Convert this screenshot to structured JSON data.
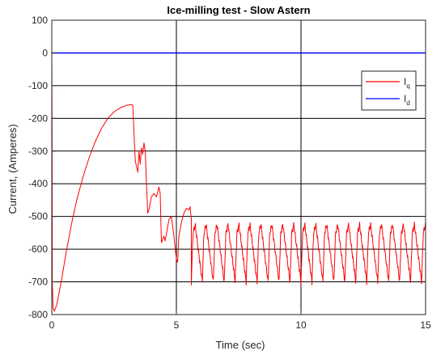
{
  "chart_data": {
    "type": "line",
    "title": "Ice-milling test - Slow Astern",
    "xlabel": "Time (sec)",
    "ylabel": "Current, (Amperes)",
    "xlim": [
      0,
      15
    ],
    "ylim": [
      -800,
      100
    ],
    "xticks": [
      0,
      5,
      10,
      15
    ],
    "yticks": [
      100,
      0,
      -100,
      -200,
      -300,
      -400,
      -500,
      -600,
      -700,
      -800
    ],
    "grid": true,
    "legend_position": "upper-right",
    "series": [
      {
        "name": "I",
        "subscript": "q",
        "color": "#ff0000",
        "x": [
          0,
          0.01,
          0.02,
          0.05,
          0.1,
          0.2,
          0.4,
          0.6,
          0.8,
          1.0,
          1.25,
          1.5,
          1.75,
          2.0,
          2.25,
          2.5,
          2.75,
          3.0,
          3.2,
          3.25,
          3.35,
          3.45,
          3.5,
          3.55,
          3.6,
          3.65,
          3.7,
          3.75,
          3.8,
          3.85,
          3.9,
          4.0,
          4.1,
          4.2,
          4.3,
          4.35,
          4.4,
          4.5,
          4.55,
          4.7,
          4.8,
          4.9,
          5.0,
          5.05,
          5.1,
          5.2,
          5.3,
          5.4,
          5.5,
          5.55,
          5.6
        ],
        "y": [
          0,
          -200,
          -700,
          -780,
          -790,
          -770,
          -690,
          -600,
          -520,
          -450,
          -380,
          -320,
          -270,
          -230,
          -200,
          -180,
          -168,
          -160,
          -158,
          -160,
          -330,
          -365,
          -300,
          -340,
          -290,
          -310,
          -275,
          -300,
          -400,
          -490,
          -480,
          -440,
          -430,
          -440,
          -410,
          -430,
          -580,
          -560,
          -575,
          -510,
          -500,
          -560,
          -630,
          -640,
          -560,
          -520,
          -490,
          -475,
          -480,
          -470,
          -510
        ]
      },
      {
        "name": "I",
        "subscript": "d",
        "color": "#0000ff",
        "x": [
          0,
          15
        ],
        "y": [
          0,
          0
        ]
      }
    ],
    "oscillation": {
      "t_start": 5.6,
      "t_end": 15,
      "period": 0.44,
      "peak_high": -525,
      "peak_low": -700
    }
  }
}
